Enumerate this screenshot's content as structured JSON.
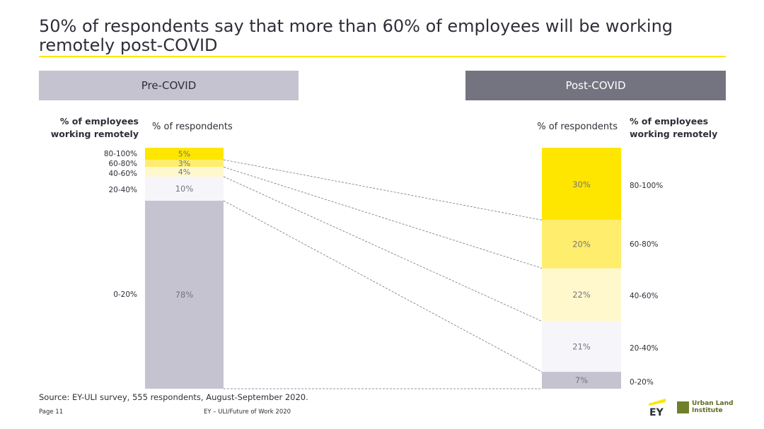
{
  "title": "50% of respondents say that more than 60% of employees will be working remotely post-COVID",
  "banners": {
    "pre": "Pre-COVID",
    "post": "Post-COVID"
  },
  "headers": {
    "employees": "% of employees working remotely",
    "respondents": "% of respondents"
  },
  "colors": {
    "accent": "#ffe600",
    "band_80_100": "#ffe600",
    "band_60_80": "#ffed6e",
    "band_40_60": "#fff8cc",
    "band_20_40": "#f6f6fa",
    "band_0_20": "#c4c3cf",
    "connector": "#747480"
  },
  "chart_data": {
    "type": "bar",
    "stacked": true,
    "categories": [
      "Pre-COVID",
      "Post-COVID"
    ],
    "series": [
      {
        "name": "80-100%",
        "values": [
          5,
          30
        ]
      },
      {
        "name": "60-80%",
        "values": [
          3,
          20
        ]
      },
      {
        "name": "40-60%",
        "values": [
          4,
          22
        ]
      },
      {
        "name": "20-40%",
        "values": [
          10,
          21
        ]
      },
      {
        "name": "0-20%",
        "values": [
          78,
          7
        ]
      }
    ],
    "value_labels": {
      "pre": [
        "5%",
        "3%",
        "4%",
        "10%",
        "78%"
      ],
      "post": [
        "30%",
        "20%",
        "22%",
        "21%",
        "7%"
      ]
    },
    "ylabel": "% of respondents",
    "legend_label": "% of employees working remotely",
    "ylim": [
      0,
      100
    ]
  },
  "source": "Source: EY-ULI survey, 555 respondents, August-September 2020.",
  "footer": {
    "page": "Page 11",
    "center": "EY – ULI/Future of Work 2020"
  },
  "logos": {
    "ey": "EY",
    "uli_line1": "Urban Land",
    "uli_line2": "Institute"
  }
}
